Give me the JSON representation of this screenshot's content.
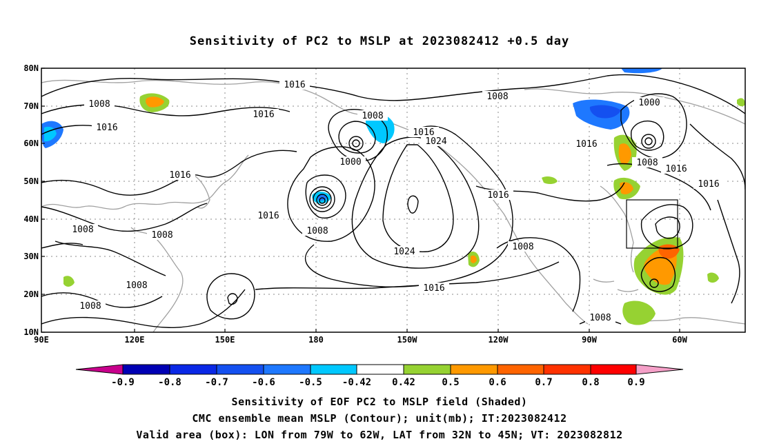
{
  "title": "Sensitivity of PC2 to MSLP at 2023082412 +0.5 day",
  "map": {
    "lon_range": [
      "90E",
      "50W"
    ],
    "lat_range": [
      "10N",
      "80N"
    ],
    "lat_ticks": [
      "80N",
      "70N",
      "60N",
      "50N",
      "40N",
      "30N",
      "20N",
      "10N"
    ],
    "lon_ticks": [
      "90E",
      "120E",
      "150E",
      "180",
      "150W",
      "120W",
      "90W",
      "60W"
    ],
    "grid": "dotted",
    "contour_color": "#000000",
    "coastline_color": "#a0a0a0",
    "contour_labels": [
      "1016",
      "1008",
      "1016",
      "1008",
      "1016",
      "1016",
      "1000",
      "1016",
      "1024",
      "1008",
      "1000",
      "1008",
      "1016",
      "1016",
      "1016",
      "1008",
      "1016",
      "1008",
      "1016",
      "1024",
      "1008",
      "1008",
      "1008",
      "1016",
      "1008"
    ],
    "valid_box": {
      "lon_from": "79W",
      "lon_to": "62W",
      "lat_from": "32N",
      "lat_to": "45N"
    }
  },
  "colorbar": {
    "labels": [
      "-0.9",
      "-0.8",
      "-0.7",
      "-0.6",
      "-0.5",
      "-0.42",
      "0.42",
      "0.5",
      "0.6",
      "0.7",
      "0.8",
      "0.9"
    ],
    "colors": [
      "#0000b4",
      "#0a28e6",
      "#1450f0",
      "#1e78ff",
      "#00c8ff",
      "#ffffff",
      "#96d232",
      "#ff9900",
      "#ff6400",
      "#ff3200",
      "#ff0000"
    ],
    "low_end_color": "#c8008c",
    "high_end_color": "#f5a0c8"
  },
  "captions": {
    "line1": "Sensitivity of EOF PC2 to MSLP field (Shaded)",
    "line2": "CMC ensemble mean MSLP (Contour); unit(mb); IT:2023082412",
    "line3": "Valid area (box): LON from 79W to 62W, LAT from 32N to 45N; VT: 2023082812"
  }
}
